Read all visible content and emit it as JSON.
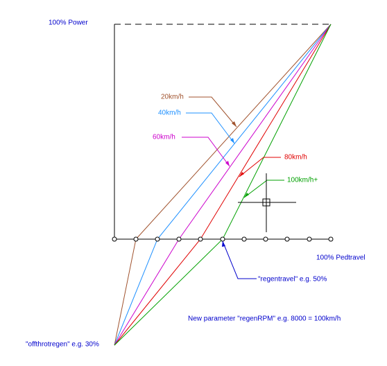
{
  "labels": {
    "power": "100%  Power",
    "pedtravel": "100% Pedtravel",
    "speed_20": "20km/h",
    "speed_40": "40km/h",
    "speed_60": "60km/h",
    "speed_80": "80km/h",
    "speed_100": "100km/h+",
    "regentravel": "\"regentravel\" e.g. 50%",
    "regenrpm": "New parameter \"regenRPM\" e.g. 8000 = 100km/h",
    "offthrotregen": "\"offthrotregen\" e.g. 30%"
  }
}
